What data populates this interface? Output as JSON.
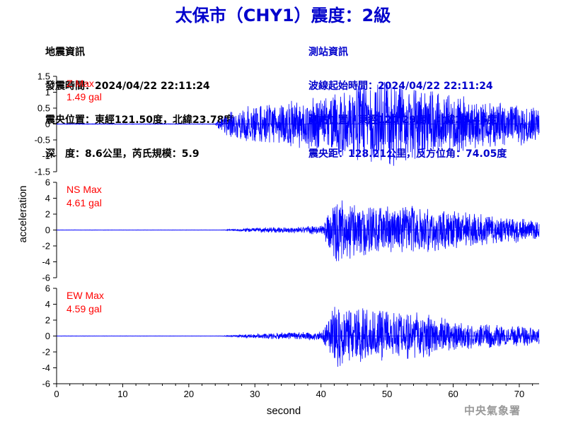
{
  "title": "太保市（CHY1）震度：2級",
  "info_left": [
    "地震資訊",
    "發震時間：2024/04/22 22:11:24",
    "震央位置：東經121.50度，北緯23.78度",
    "深　度：8.6公里，芮氏規模：5.9"
  ],
  "info_right": [
    "測站資訊",
    "波線起始時間：2024/04/22 22:11:24",
    "測站位置：東經120.29度，北緯23.46度",
    "震央距：128.21公里，反方位角：74.05度"
  ],
  "agency": "中央氣象署",
  "colors": {
    "title": "#0000cc",
    "trace": "#0000ff",
    "max_label": "#ff0000",
    "agency": "#999999"
  },
  "chart_data": {
    "type": "line",
    "xlabel": "second",
    "ylabel": "acceleration",
    "xlim": [
      0,
      73
    ],
    "xticks": [
      "0",
      "10",
      "20",
      "30",
      "40",
      "50",
      "60",
      "70"
    ],
    "panels": [
      {
        "name": "Z",
        "max_label": "Z Max",
        "max_value": "1.49 gal",
        "ylim": [
          -1.5,
          1.5
        ],
        "yticks": [
          "1.5",
          "1",
          "0.5",
          "0",
          "-0.5",
          "-1",
          "-1.5"
        ],
        "envelope": {
          "x": [
            0,
            24,
            25,
            27,
            30,
            35,
            40,
            45,
            50,
            55,
            60,
            65,
            70,
            73
          ],
          "amp": [
            0.01,
            0.01,
            0.35,
            0.5,
            0.6,
            0.75,
            0.85,
            1.2,
            1.4,
            1.1,
            0.95,
            0.75,
            0.7,
            0.6
          ]
        }
      },
      {
        "name": "NS",
        "max_label": "NS Max",
        "max_value": "4.61 gal",
        "ylim": [
          -6,
          6
        ],
        "yticks": [
          "6",
          "4",
          "2",
          "0",
          "-2",
          "-4",
          "-6"
        ],
        "envelope": {
          "x": [
            0,
            25,
            30,
            35,
            40,
            41,
            42,
            45,
            50,
            55,
            60,
            65,
            70,
            73
          ],
          "amp": [
            0.02,
            0.02,
            0.3,
            0.4,
            0.6,
            2.0,
            4.5,
            3.5,
            3.2,
            3.0,
            2.4,
            2.0,
            1.6,
            1.0
          ]
        }
      },
      {
        "name": "EW",
        "max_label": "EW Max",
        "max_value": "4.59 gal",
        "ylim": [
          -6,
          6
        ],
        "yticks": [
          "6",
          "4",
          "2",
          "0",
          "-2",
          "-4",
          "-6"
        ],
        "envelope": {
          "x": [
            0,
            25,
            30,
            35,
            40,
            41,
            42,
            45,
            50,
            55,
            60,
            65,
            70,
            73
          ],
          "amp": [
            0.02,
            0.02,
            0.3,
            0.45,
            0.6,
            1.8,
            4.3,
            3.6,
            3.2,
            3.0,
            2.0,
            1.6,
            1.3,
            1.1
          ]
        }
      }
    ]
  }
}
